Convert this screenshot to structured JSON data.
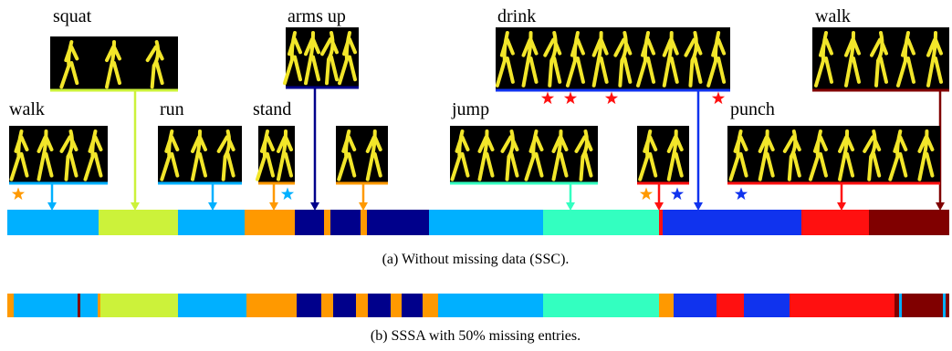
{
  "action_labels": [
    "squat",
    "arms up",
    "drink",
    "walk",
    "walk",
    "run",
    "stand",
    "jump",
    "punch"
  ],
  "captions": {
    "a": "(a) Without missing data (SSC).",
    "b": "(b) SSSA with 50% missing entries."
  }
}
